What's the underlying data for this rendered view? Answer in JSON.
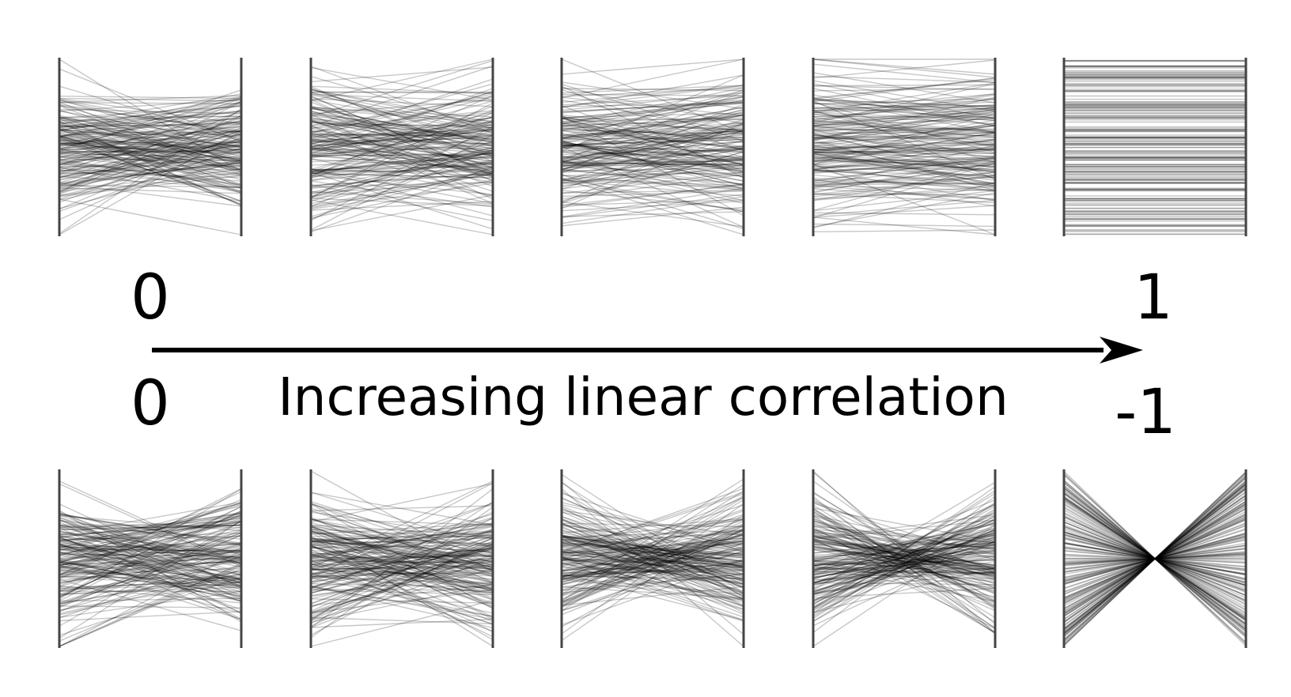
{
  "arrow": {
    "caption": "Increasing linear correlation",
    "top_start": "0",
    "top_end": "1",
    "bottom_start": "0",
    "bottom_end": "-1"
  },
  "chart_data": {
    "type": "parallel-coordinates",
    "lines_per_panel": 180,
    "rows": [
      {
        "name": "positive",
        "correlations": [
          0,
          0.25,
          0.5,
          0.75,
          1
        ]
      },
      {
        "name": "negative",
        "correlations": [
          0,
          -0.25,
          -0.5,
          -0.75,
          -1
        ]
      }
    ],
    "line_color": "#000000",
    "axis_color": "#444444"
  }
}
